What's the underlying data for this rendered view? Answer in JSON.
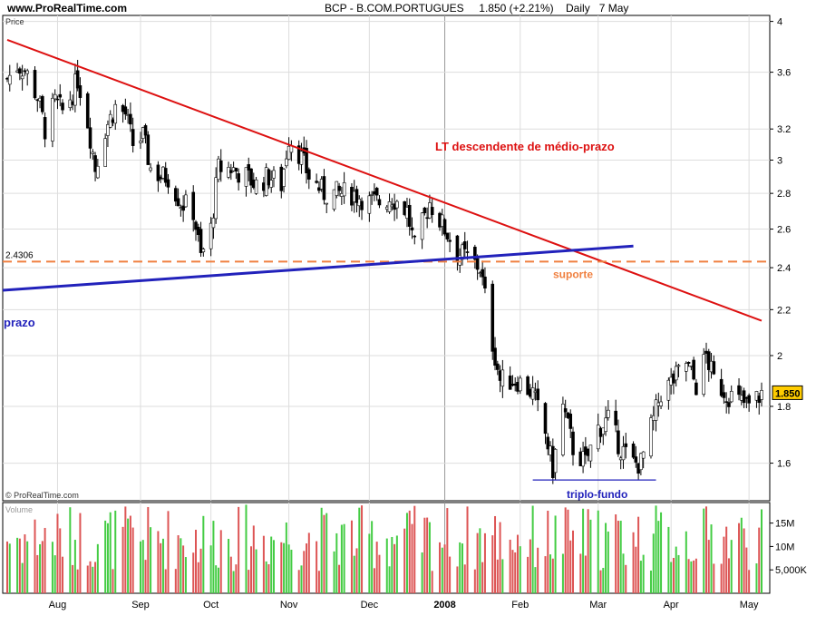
{
  "header": {
    "site": "www.ProRealTime.com",
    "instrument": "BCP - B.COM.PORTUGUES",
    "last_price": "1.850",
    "change": "(+2.21%)",
    "period": "Daily",
    "date": "7 May"
  },
  "price_panel_label": "Price",
  "volume_panel_label": "Volume",
  "copyright": "© ProRealTime.com",
  "colors": {
    "up": "#22aa22",
    "down": "#cc1111",
    "resistance_line": "#dd1111",
    "trend_line": "#2222bb",
    "support_line": "#f08040",
    "volume_up": "#44cc44",
    "volume_down": "#dd5555",
    "price_badge_bg": "#ffcc00",
    "grid": "#dddddd"
  },
  "chart_data": [
    {
      "type": "candlestick",
      "title": "BCP - B.COM.PORTUGUES",
      "ylabel": "Price",
      "y_scale": "log",
      "ylim": [
        1.48,
        4.05
      ],
      "y_ticks": [
        "4",
        "3.6",
        "3.2",
        "3",
        "2.8",
        "2.6",
        "2.4",
        "2.2",
        "2",
        "1.8",
        "1.6"
      ],
      "x_ticks": [
        "Aug",
        "Sep",
        "Oct",
        "Nov",
        "Dec",
        "2008",
        "Feb",
        "Mar",
        "Apr",
        "May"
      ],
      "x_range": [
        "2007-07-12",
        "2008-05-07"
      ],
      "grid": true,
      "close_path": [
        [
          "2007-07-12",
          3.55
        ],
        [
          "2007-07-16",
          3.65
        ],
        [
          "2007-07-19",
          3.62
        ],
        [
          "2007-07-24",
          3.42
        ],
        [
          "2007-07-27",
          3.2
        ],
        [
          "2007-07-31",
          3.38
        ],
        [
          "2007-08-03",
          3.32
        ],
        [
          "2007-08-07",
          3.45
        ],
        [
          "2007-08-09",
          3.55
        ],
        [
          "2007-08-13",
          3.25
        ],
        [
          "2007-08-16",
          2.95
        ],
        [
          "2007-08-20",
          3.2
        ],
        [
          "2007-08-24",
          3.35
        ],
        [
          "2007-08-28",
          3.3
        ],
        [
          "2007-08-31",
          3.1
        ],
        [
          "2007-09-04",
          3.15
        ],
        [
          "2007-09-07",
          2.95
        ],
        [
          "2007-09-11",
          2.9
        ],
        [
          "2007-09-14",
          2.9
        ],
        [
          "2007-09-19",
          2.75
        ],
        [
          "2007-09-24",
          2.7
        ],
        [
          "2007-09-27",
          2.45
        ],
        [
          "2007-10-01",
          2.6
        ],
        [
          "2007-10-04",
          2.95
        ],
        [
          "2007-10-09",
          2.95
        ],
        [
          "2007-10-15",
          2.9
        ],
        [
          "2007-10-19",
          2.85
        ],
        [
          "2007-10-24",
          2.9
        ],
        [
          "2007-10-29",
          2.85
        ],
        [
          "2007-11-01",
          3.15
        ],
        [
          "2007-11-05",
          3.05
        ],
        [
          "2007-11-09",
          2.9
        ],
        [
          "2007-11-15",
          2.8
        ],
        [
          "2007-11-21",
          2.8
        ],
        [
          "2007-11-27",
          2.8
        ],
        [
          "2007-12-03",
          2.75
        ],
        [
          "2007-12-07",
          2.75
        ],
        [
          "2007-12-12",
          2.78
        ],
        [
          "2007-12-18",
          2.7
        ],
        [
          "2007-12-21",
          2.5
        ],
        [
          "2007-12-27",
          2.75
        ],
        [
          "2008-01-02",
          2.6
        ],
        [
          "2008-01-07",
          2.48
        ],
        [
          "2008-01-11",
          2.45
        ],
        [
          "2008-01-16",
          2.4
        ],
        [
          "2008-01-21",
          2.05
        ],
        [
          "2008-01-24",
          1.9
        ],
        [
          "2008-01-31",
          1.9
        ],
        [
          "2008-02-06",
          1.85
        ],
        [
          "2008-02-11",
          1.7
        ],
        [
          "2008-02-14",
          1.58
        ],
        [
          "2008-02-18",
          1.8
        ],
        [
          "2008-02-22",
          1.65
        ],
        [
          "2008-02-27",
          1.6
        ],
        [
          "2008-03-03",
          1.72
        ],
        [
          "2008-03-07",
          1.75
        ],
        [
          "2008-03-12",
          1.65
        ],
        [
          "2008-03-17",
          1.6
        ],
        [
          "2008-03-20",
          1.6
        ],
        [
          "2008-03-25",
          1.75
        ],
        [
          "2008-03-28",
          1.85
        ],
        [
          "2008-04-02",
          1.9
        ],
        [
          "2008-04-07",
          1.97
        ],
        [
          "2008-04-11",
          1.88
        ],
        [
          "2008-04-15",
          2.0
        ],
        [
          "2008-04-18",
          1.9
        ],
        [
          "2008-04-23",
          1.85
        ],
        [
          "2008-04-28",
          1.82
        ],
        [
          "2008-05-02",
          1.8
        ],
        [
          "2008-05-07",
          1.85
        ]
      ],
      "annotations": [
        {
          "name": "resistance",
          "type": "line",
          "label": "LT descendente de médio-prazo",
          "from": [
            "2007-07-12",
            3.85
          ],
          "to": [
            "2008-05-07",
            2.15
          ]
        },
        {
          "name": "support",
          "type": "dashed-hline",
          "label": "suporte",
          "value_label": "2.4306",
          "y": 2.4306
        },
        {
          "name": "trendline",
          "type": "line",
          "label": "médio-prazo",
          "label_visible": "prazo",
          "from": [
            "2007-07-12",
            2.29
          ],
          "to": [
            "2008-03-17",
            2.51
          ]
        },
        {
          "name": "triple-bottom",
          "type": "hline",
          "label": "triplo-fundo",
          "y": 1.545,
          "from_date": "2008-02-06",
          "to_date": "2008-03-26"
        }
      ],
      "last_price_badge": "1.850"
    },
    {
      "type": "bar",
      "title": "",
      "ylabel": "Volume",
      "y_ticks": [
        "15M",
        "10M",
        "5,000K"
      ],
      "ylim": [
        0,
        19000000
      ],
      "x_ticks": [
        "Aug",
        "Sep",
        "Oct",
        "Nov",
        "Dec",
        "2008",
        "Feb",
        "Mar",
        "Apr",
        "May"
      ],
      "x_range": [
        "2007-07-12",
        "2008-05-07"
      ]
    }
  ]
}
